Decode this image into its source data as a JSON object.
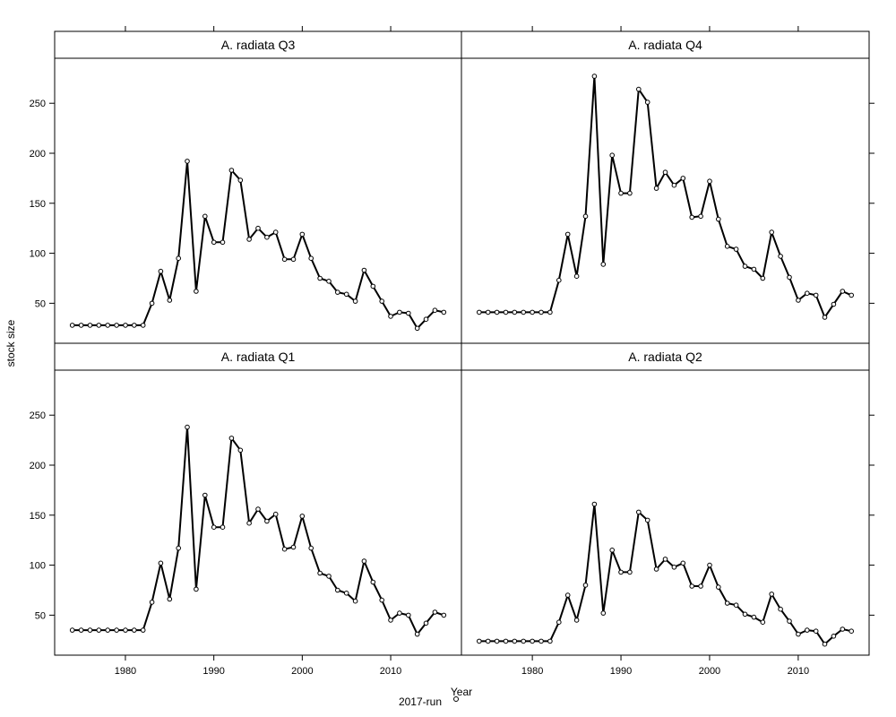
{
  "chart_data": {
    "type": "line",
    "layout": "lattice 2x2",
    "xlabel": "Year",
    "ylabel": "stock size",
    "xlim": [
      1972,
      2018
    ],
    "ylim": [
      10,
      295
    ],
    "x_ticks": [
      1980,
      1990,
      2000,
      2010
    ],
    "y_ticks": [
      50,
      100,
      150,
      200,
      250
    ],
    "legend": {
      "label": "2017-run",
      "position": "bottom-center"
    },
    "line_color": "#000000",
    "x": [
      1974,
      1975,
      1976,
      1977,
      1978,
      1979,
      1980,
      1981,
      1982,
      1983,
      1984,
      1985,
      1986,
      1987,
      1988,
      1989,
      1990,
      1991,
      1992,
      1993,
      1994,
      1995,
      1996,
      1997,
      1998,
      1999,
      2000,
      2001,
      2002,
      2003,
      2004,
      2005,
      2006,
      2007,
      2008,
      2009,
      2010,
      2011,
      2012,
      2013,
      2014,
      2015,
      2016
    ],
    "panels": [
      {
        "title": "A. radiata Q3",
        "values": [
          28,
          28,
          28,
          28,
          28,
          28,
          28,
          28,
          28,
          50,
          82,
          53,
          95,
          192,
          62,
          137,
          111,
          111,
          183,
          173,
          114,
          125,
          116,
          121,
          94,
          94,
          119,
          95,
          75,
          72,
          61,
          59,
          52,
          83,
          67,
          52,
          37,
          41,
          40,
          25,
          34,
          43,
          41
        ]
      },
      {
        "title": "A. radiata Q4",
        "values": [
          41,
          41,
          41,
          41,
          41,
          41,
          41,
          41,
          41,
          73,
          119,
          77,
          137,
          277,
          89,
          198,
          160,
          160,
          264,
          251,
          165,
          181,
          168,
          175,
          136,
          137,
          172,
          134,
          107,
          104,
          87,
          84,
          75,
          121,
          97,
          76,
          53,
          60,
          58,
          36,
          49,
          62,
          58
        ]
      },
      {
        "title": "A. radiata Q1",
        "values": [
          35,
          35,
          35,
          35,
          35,
          35,
          35,
          35,
          35,
          63,
          102,
          66,
          117,
          238,
          76,
          170,
          138,
          138,
          227,
          215,
          142,
          156,
          144,
          151,
          116,
          118,
          149,
          117,
          92,
          89,
          75,
          72,
          64,
          104,
          83,
          65,
          45,
          52,
          50,
          31,
          42,
          53,
          50
        ]
      },
      {
        "title": "A. radiata Q2",
        "values": [
          24,
          24,
          24,
          24,
          24,
          24,
          24,
          24,
          24,
          43,
          70,
          45,
          80,
          161,
          52,
          115,
          93,
          93,
          153,
          145,
          96,
          106,
          98,
          102,
          79,
          79,
          100,
          78,
          62,
          60,
          51,
          48,
          43,
          71,
          56,
          44,
          31,
          35,
          34,
          21,
          29,
          36,
          34
        ]
      }
    ]
  }
}
